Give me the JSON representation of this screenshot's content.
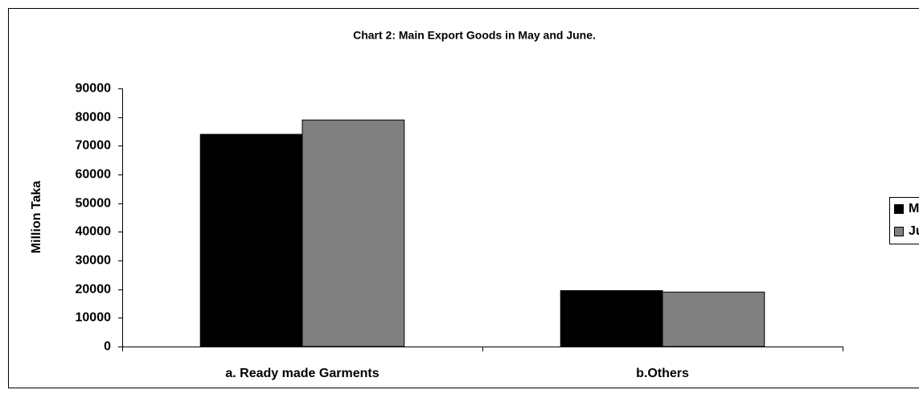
{
  "chart_data": {
    "type": "bar",
    "title": "Chart 2: Main Export Goods in May and June.",
    "y_label": "Million Taka",
    "categories": [
      "a. Ready made Garments",
      "b.Others"
    ],
    "series": [
      {
        "name": "May",
        "color": "#000000",
        "values": [
          74000,
          19500
        ]
      },
      {
        "name": "June",
        "color": "#808080",
        "values": [
          79000,
          19000
        ]
      }
    ],
    "ylim": [
      0,
      90000
    ],
    "yticks": [
      0,
      10000,
      20000,
      30000,
      40000,
      50000,
      60000,
      70000,
      80000,
      90000
    ],
    "legend": "right"
  }
}
